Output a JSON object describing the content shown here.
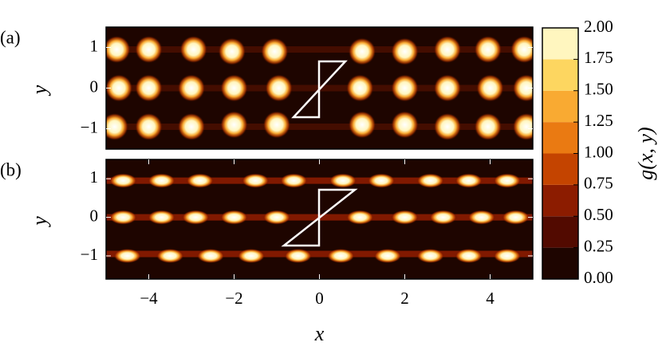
{
  "chart_data": [
    {
      "type": "heatmap",
      "panel_label": "(a)",
      "ylabel": "y",
      "xlim": [
        -5,
        5
      ],
      "ylim": [
        -1.5,
        1.5
      ],
      "yticks": [
        {
          "value": -1,
          "label": "−1"
        },
        0,
        1
      ],
      "background": "#1e0500",
      "peaks": {
        "x": [
          -4.75,
          -4.0,
          -2.95,
          -2.05,
          -1.05,
          1.0,
          2.0,
          3.0,
          3.95,
          4.8,
          -4.7,
          -4.0,
          -3.0,
          -2.0,
          -0.95,
          0.95,
          2.0,
          3.0,
          4.0,
          4.85,
          -4.8,
          -4.0,
          -3.0,
          -2.0,
          -1.0,
          1.0,
          2.0,
          3.0,
          3.95,
          4.85
        ],
        "y": [
          0.95,
          0.95,
          0.95,
          0.9,
          0.9,
          0.9,
          0.9,
          0.95,
          0.95,
          0.95,
          0.0,
          0.0,
          0.0,
          0.0,
          0.0,
          0.0,
          0.0,
          0.0,
          0.0,
          0.0,
          -0.95,
          -0.95,
          -0.95,
          -0.9,
          -0.9,
          -0.9,
          -0.9,
          -0.95,
          -0.95,
          -0.95
        ]
      }
    },
    {
      "type": "heatmap",
      "panel_label": "(b)",
      "ylabel": "y",
      "xlabel": "x",
      "xlim": [
        -5,
        5
      ],
      "ylim": [
        -1.6,
        1.5
      ],
      "xticks": [
        {
          "value": -4,
          "label": "−4"
        },
        {
          "value": -2,
          "label": "−2"
        },
        0,
        2,
        4
      ],
      "yticks": [
        {
          "value": -1,
          "label": "−1"
        },
        0,
        1
      ],
      "background": "#1e0500",
      "peaks": {
        "x": [
          -4.6,
          -3.7,
          -2.8,
          -1.5,
          -0.6,
          0.55,
          1.45,
          2.6,
          3.5,
          4.4,
          -4.6,
          -3.7,
          -2.9,
          -2.0,
          -1.0,
          0.95,
          2.0,
          2.9,
          3.8,
          4.6,
          -4.5,
          -3.5,
          -2.55,
          -1.6,
          -0.5,
          0.5,
          1.6,
          2.6,
          3.5,
          4.4
        ],
        "y": [
          0.95,
          0.95,
          0.95,
          0.95,
          0.95,
          0.95,
          0.95,
          0.95,
          0.95,
          0.95,
          0.0,
          0.0,
          0.0,
          0.0,
          0.0,
          0.0,
          0.0,
          0.0,
          0.0,
          0.0,
          -1.0,
          -1.0,
          -1.0,
          -1.0,
          -1.0,
          -1.0,
          -1.0,
          -1.0,
          -1.0,
          -1.0
        ]
      }
    },
    {
      "type": "colorbar",
      "label": "g(x, y)",
      "ticks": [
        {
          "value": 0,
          "label": "0.00"
        },
        {
          "value": 0.25,
          "label": "0.25"
        },
        {
          "value": 0.5,
          "label": "0.50"
        },
        {
          "value": 0.75,
          "label": "0.75"
        },
        {
          "value": 1,
          "label": "1.00"
        },
        {
          "value": 1.25,
          "label": "1.25"
        },
        {
          "value": 1.5,
          "label": "1.50"
        },
        {
          "value": 1.75,
          "label": "1.75"
        },
        {
          "value": 2,
          "label": "2.00"
        }
      ],
      "colors": [
        "#1e0500",
        "#520a00",
        "#8c1c00",
        "#c44400",
        "#ea7a12",
        "#f9aa32",
        "#fdd660",
        "#fff6bf"
      ]
    }
  ]
}
